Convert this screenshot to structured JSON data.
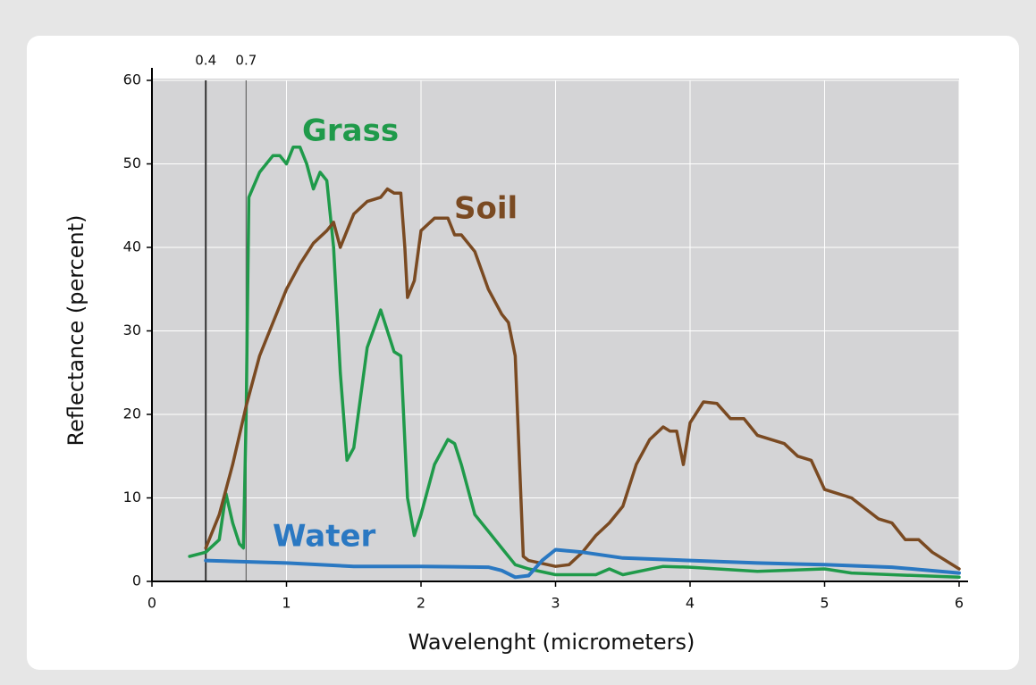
{
  "chart_data": {
    "type": "line",
    "xlabel": "Wavelenght (micrometers)",
    "ylabel": "Reflectance (percent)",
    "xlim": [
      0,
      6
    ],
    "ylim": [
      0,
      60
    ],
    "xticks": [
      0,
      1,
      2,
      3,
      4,
      5,
      6
    ],
    "yticks": [
      0,
      10,
      20,
      30,
      40,
      50,
      60
    ],
    "vlines": [
      0.4,
      0.7
    ],
    "grid": true,
    "series": [
      {
        "name": "Grass",
        "color": "#1f9a4a",
        "x": [
          0.28,
          0.4,
          0.5,
          0.55,
          0.6,
          0.65,
          0.68,
          0.7,
          0.72,
          0.8,
          0.9,
          0.95,
          1.0,
          1.05,
          1.1,
          1.15,
          1.2,
          1.25,
          1.3,
          1.35,
          1.4,
          1.45,
          1.5,
          1.6,
          1.7,
          1.75,
          1.8,
          1.85,
          1.9,
          1.95,
          2.0,
          2.1,
          2.2,
          2.25,
          2.3,
          2.4,
          2.5,
          2.6,
          2.7,
          2.8,
          3.0,
          3.3,
          3.4,
          3.5,
          3.8,
          4.0,
          4.5,
          5.0,
          5.2,
          5.5,
          6.0
        ],
        "values": [
          3,
          3.5,
          5,
          10.5,
          7,
          4.5,
          4,
          20,
          46,
          49,
          51,
          51,
          50,
          52,
          52,
          50,
          47,
          49,
          48,
          40,
          25,
          14.5,
          16,
          28,
          32.5,
          30,
          27.5,
          27,
          10,
          5.5,
          8,
          14,
          17,
          16.5,
          14,
          8,
          6,
          4,
          2,
          1.5,
          0.8,
          0.8,
          1.5,
          0.8,
          1.8,
          1.7,
          1.2,
          1.5,
          1,
          0.8,
          0.5
        ]
      },
      {
        "name": "Soil",
        "color": "#7a4a22",
        "x": [
          0.4,
          0.5,
          0.6,
          0.7,
          0.8,
          0.9,
          1.0,
          1.1,
          1.2,
          1.3,
          1.35,
          1.4,
          1.45,
          1.5,
          1.6,
          1.7,
          1.75,
          1.8,
          1.85,
          1.88,
          1.9,
          1.95,
          2.0,
          2.1,
          2.2,
          2.25,
          2.3,
          2.4,
          2.5,
          2.6,
          2.65,
          2.7,
          2.73,
          2.76,
          2.8,
          3.0,
          3.1,
          3.2,
          3.3,
          3.4,
          3.5,
          3.6,
          3.7,
          3.8,
          3.85,
          3.9,
          3.95,
          4.0,
          4.1,
          4.2,
          4.3,
          4.4,
          4.5,
          4.6,
          4.7,
          4.8,
          4.9,
          5.0,
          5.2,
          5.4,
          5.5,
          5.6,
          5.7,
          5.8,
          6.0
        ],
        "values": [
          4,
          8,
          14,
          21,
          27,
          31,
          35,
          38,
          40.5,
          42,
          43,
          40,
          42,
          44,
          45.5,
          46,
          47,
          46.5,
          46.5,
          40,
          34,
          36,
          42,
          43.5,
          43.5,
          41.5,
          41.5,
          39.5,
          35,
          32,
          31,
          27,
          15,
          3,
          2.5,
          1.8,
          2,
          3.5,
          5.5,
          7,
          9,
          14,
          17,
          18.5,
          18,
          18,
          14,
          19,
          21.5,
          21.3,
          19.5,
          19.5,
          17.5,
          17,
          16.5,
          15,
          14.5,
          11,
          10,
          7.5,
          7,
          5,
          5,
          3.5,
          1.5
        ]
      },
      {
        "name": "Water",
        "color": "#2a78c2",
        "x": [
          0.4,
          1.0,
          1.5,
          2.0,
          2.5,
          2.6,
          2.7,
          2.8,
          2.9,
          3.0,
          3.2,
          3.5,
          4.0,
          4.5,
          5.0,
          5.5,
          6.0
        ],
        "values": [
          2.5,
          2.2,
          1.8,
          1.8,
          1.7,
          1.3,
          0.5,
          0.7,
          2.5,
          3.8,
          3.5,
          2.8,
          2.5,
          2.2,
          2.0,
          1.7,
          1.0
        ]
      }
    ]
  }
}
